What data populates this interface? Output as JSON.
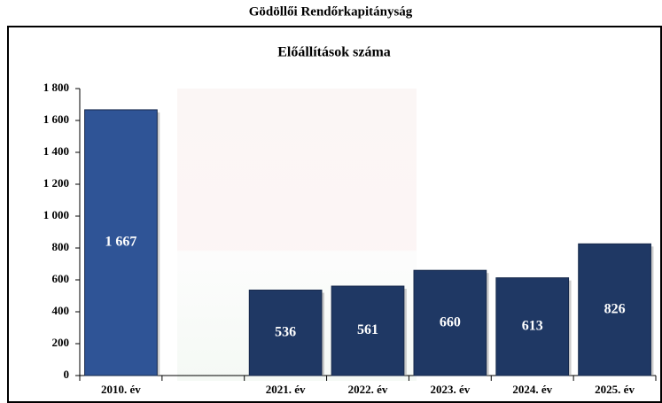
{
  "chart_data": {
    "type": "bar",
    "title": "Gödöllői Rendőrkapitányság",
    "subtitle": "Előállítások száma",
    "categories": [
      "2010. év",
      null,
      "2021. év",
      "2022. év",
      "2023. év",
      "2024. év",
      "2025. év"
    ],
    "values": [
      1667,
      null,
      536,
      561,
      660,
      613,
      826
    ],
    "value_labels": [
      "1 667",
      null,
      "536",
      "561",
      "660",
      "613",
      "826"
    ],
    "colors": [
      "#2f5496",
      null,
      "#1f3864",
      "#1f3864",
      "#1f3864",
      "#1f3864",
      "#1f3864"
    ],
    "ylim": [
      0,
      1800
    ],
    "yticks": [
      0,
      200,
      400,
      600,
      800,
      {
        "value": 1000,
        "label": "1 000"
      },
      {
        "value": 1200,
        "label": "1 200"
      },
      {
        "value": 1400,
        "label": "1 400"
      },
      {
        "value": 1600,
        "label": "1 600"
      },
      {
        "value": 1800,
        "label": "1 800"
      }
    ],
    "grid": false
  }
}
